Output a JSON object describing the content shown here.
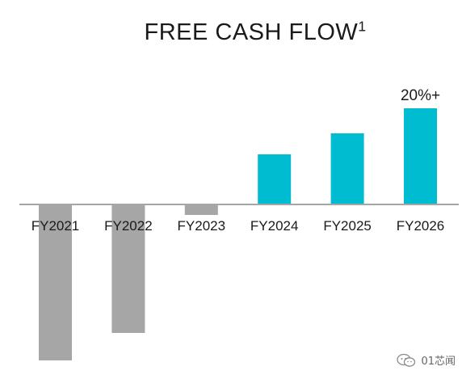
{
  "chart_data": {
    "type": "bar",
    "title": "FREE CASH FLOW",
    "title_superscript": "1",
    "categories": [
      "FY2021",
      "FY2022",
      "FY2023",
      "FY2024",
      "FY2025",
      "FY2026"
    ],
    "values": [
      -19.2,
      -15.8,
      -1.2,
      6.2,
      8.8,
      11.9
    ],
    "annotations": [
      {
        "category": "FY2026",
        "text": "20%+"
      }
    ],
    "colors": {
      "negative": "#a6a6a6",
      "positive": "#00bcd0",
      "axis": "#a6a6a6",
      "text": "#1a1a1a"
    },
    "ylim": [
      -20,
      12.5
    ],
    "grid": false,
    "legend": "none"
  },
  "watermark": {
    "text": "01芯闻",
    "icon": "wechat-icon"
  }
}
